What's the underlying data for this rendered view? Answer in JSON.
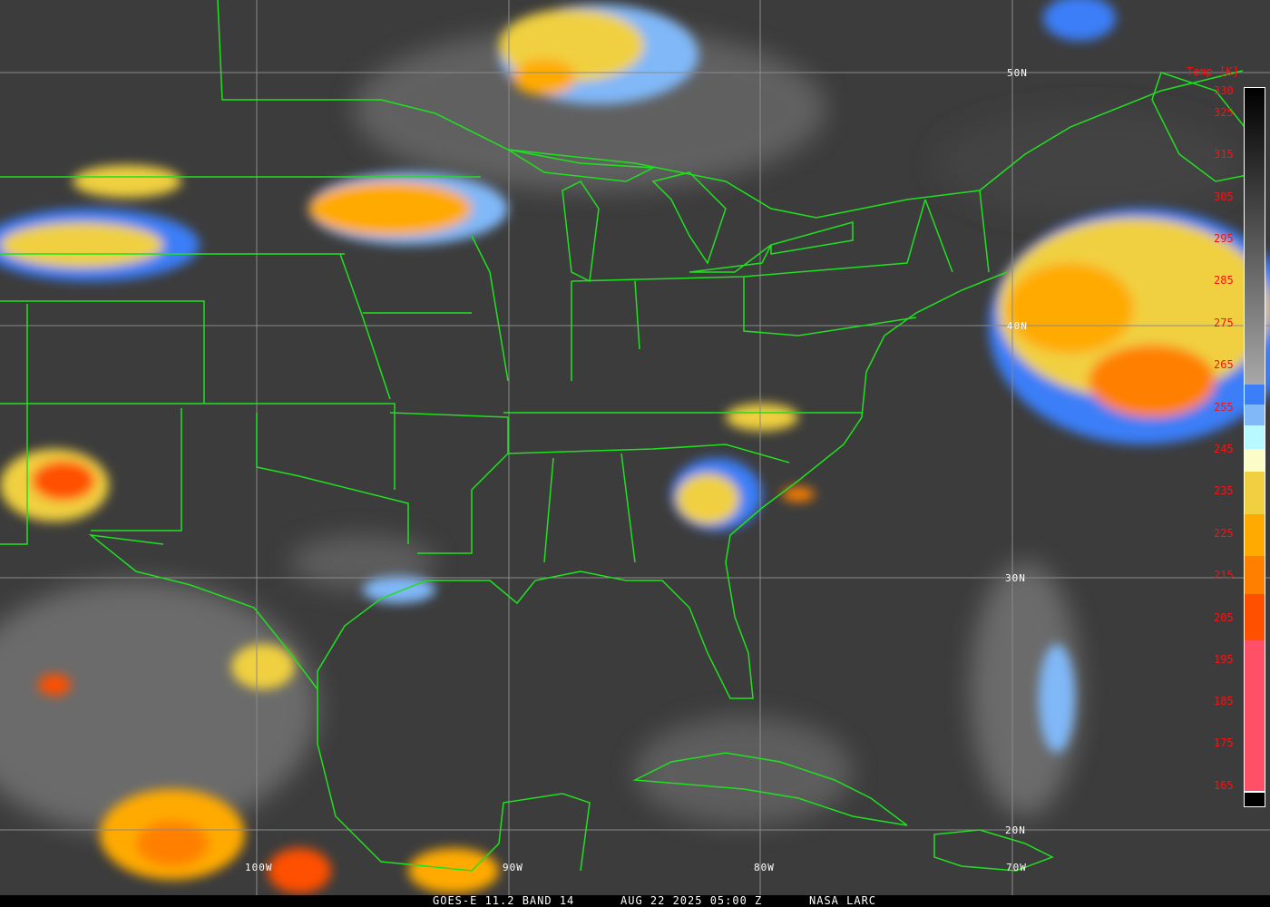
{
  "caption": {
    "satellite": "GOES-E 11.2 BAND 14",
    "datetime": "AUG 22 2025 05:00 Z",
    "credit": "NASA LARC"
  },
  "colorbar": {
    "title": "Temp [K]",
    "ticks": [
      "330",
      "325",
      "315",
      "305",
      "295",
      "285",
      "275",
      "265",
      "255",
      "245",
      "235",
      "225",
      "215",
      "205",
      "195",
      "185",
      "175",
      "165"
    ],
    "segments": [
      {
        "from_k": 330,
        "to_k": 262,
        "color": "gradient #000000 to #a8a8a8"
      },
      {
        "from_k": 262,
        "to_k": 257,
        "color": "#3a7ef8"
      },
      {
        "from_k": 257,
        "to_k": 252,
        "color": "#80b8f8"
      },
      {
        "from_k": 252,
        "to_k": 246,
        "color": "#b8f8ff"
      },
      {
        "from_k": 246,
        "to_k": 241,
        "color": "#fcfcc8"
      },
      {
        "from_k": 241,
        "to_k": 231,
        "color": "#f0d040"
      },
      {
        "from_k": 231,
        "to_k": 221,
        "color": "#ffaa00"
      },
      {
        "from_k": 221,
        "to_k": 212,
        "color": "#ff8000"
      },
      {
        "from_k": 212,
        "to_k": 201,
        "color": "#ff5000"
      },
      {
        "from_k": 201,
        "to_k": 165,
        "color": "#ff5068"
      }
    ]
  },
  "grid": {
    "latitudes": [
      "50N",
      "40N",
      "30N",
      "20N"
    ],
    "longitudes": [
      "100W",
      "90W",
      "80W",
      "70W"
    ]
  },
  "colors": {
    "boundaries": "#20e020",
    "grid": "#8a8a8a",
    "labels": "#ff1010"
  }
}
